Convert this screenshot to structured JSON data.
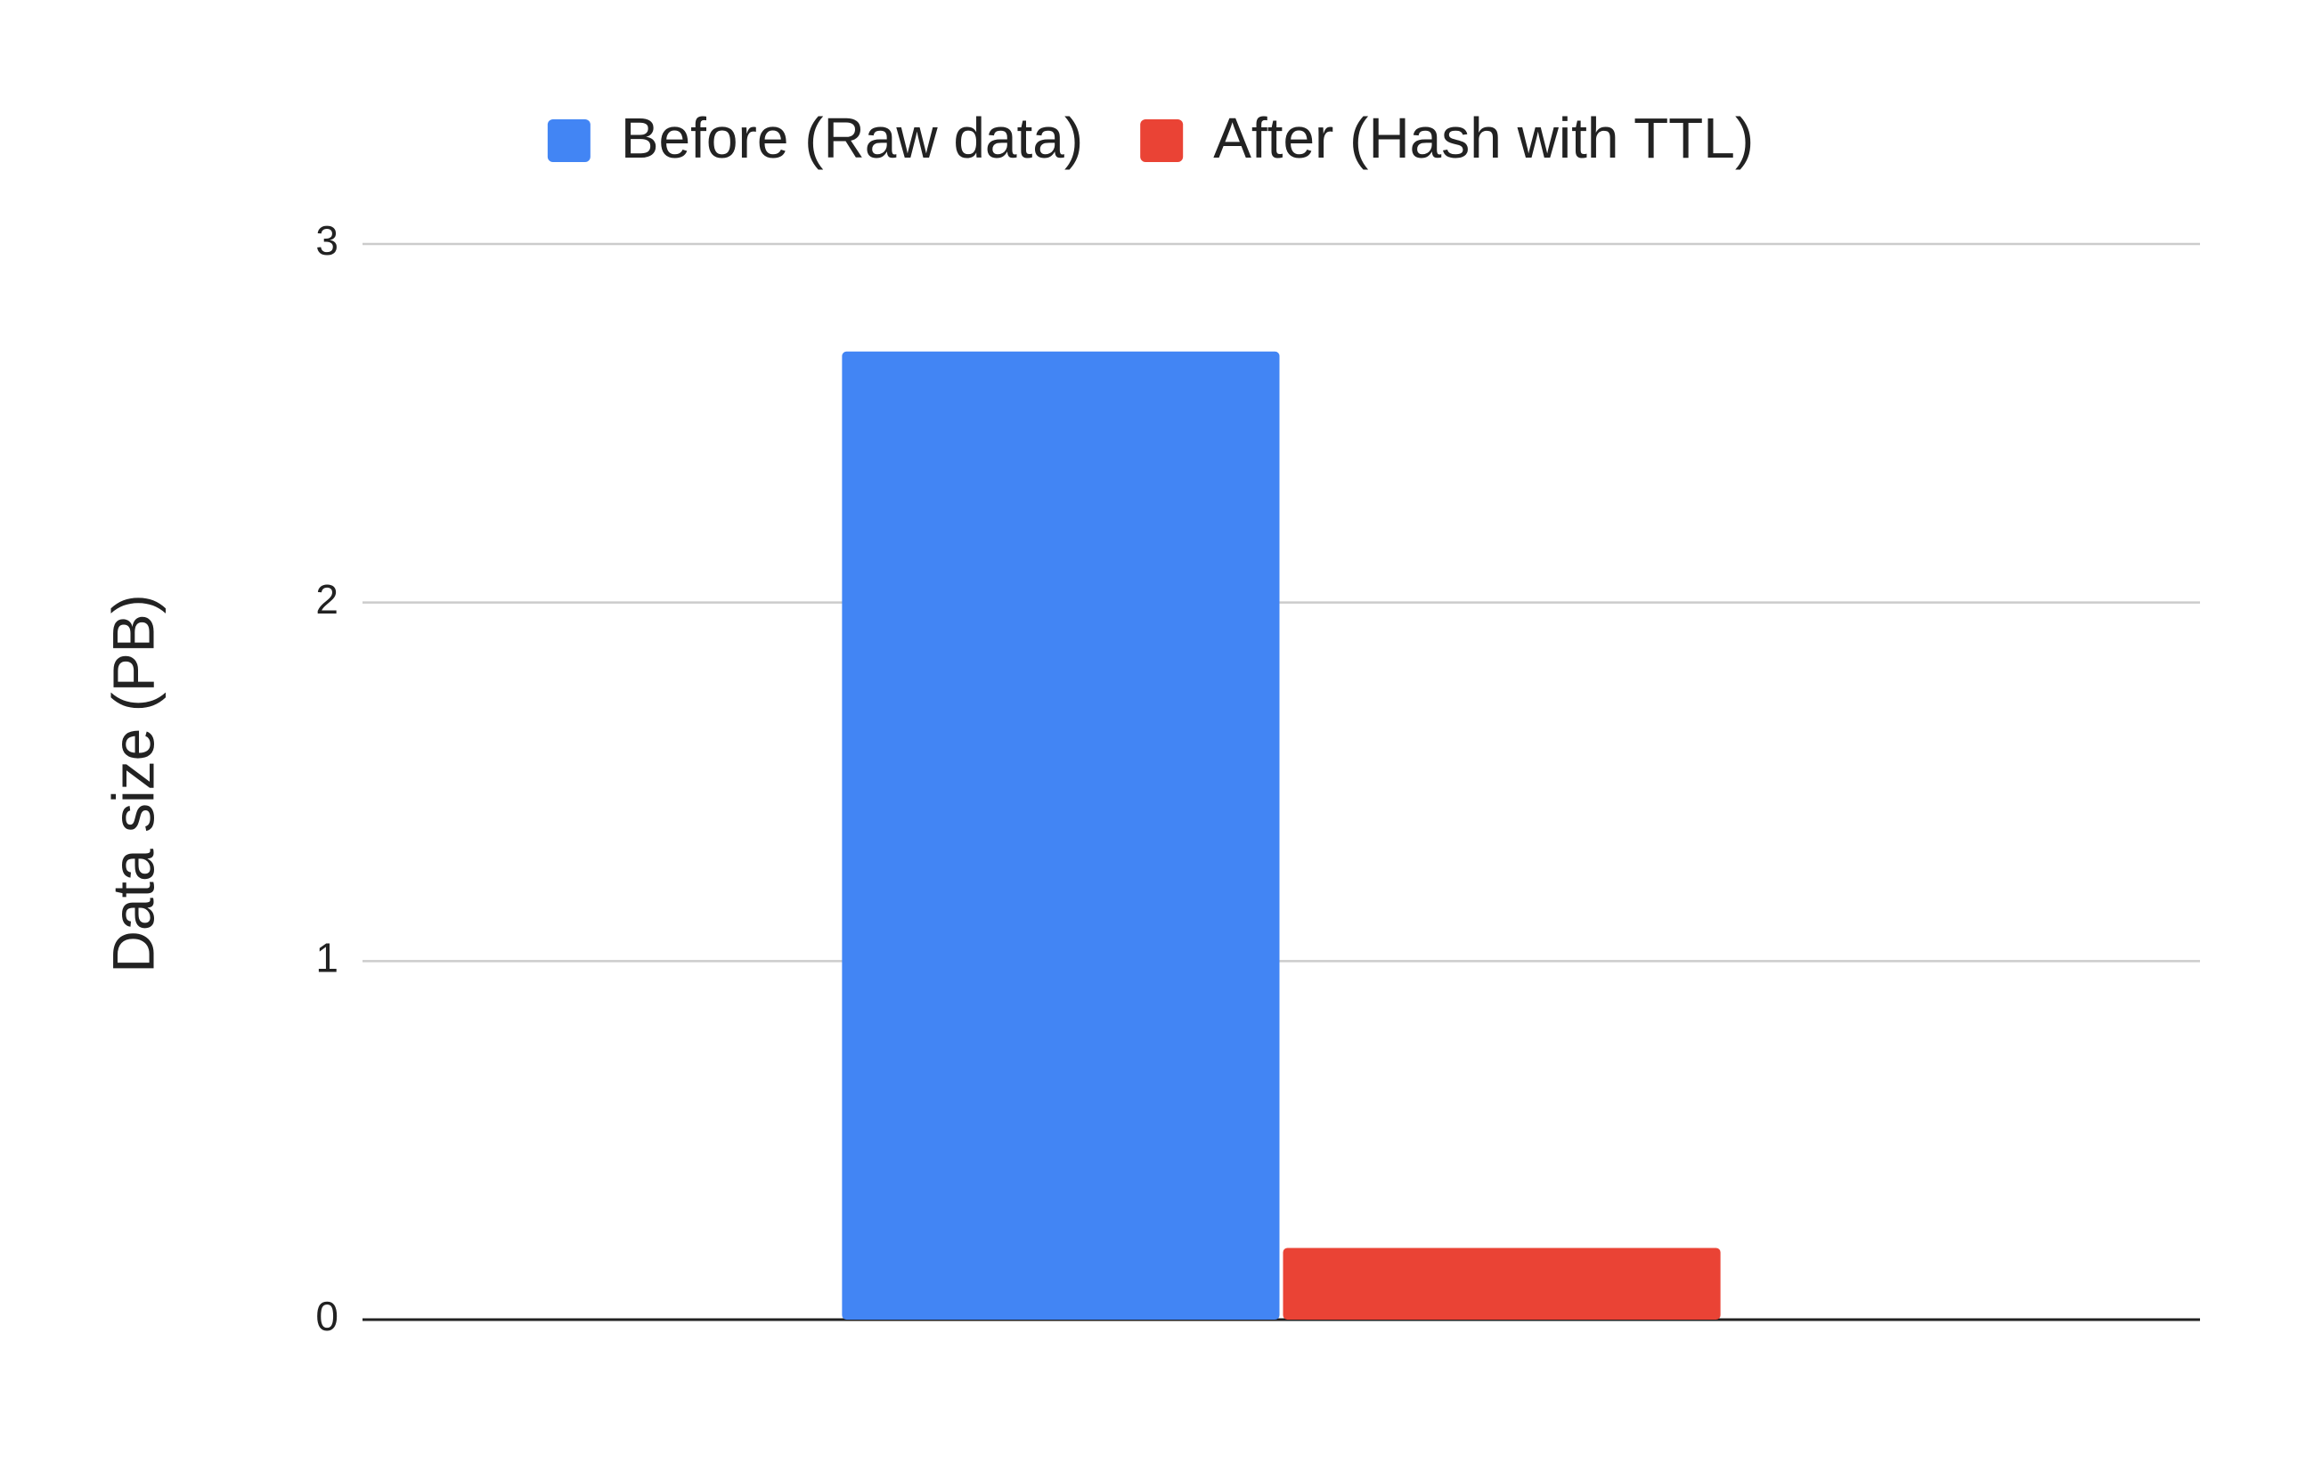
{
  "chart_data": {
    "type": "bar",
    "y_label": "Data size (PB)",
    "categories": [
      null
    ],
    "series": [
      {
        "name": "Before (Raw data)",
        "color": "#4285f4",
        "values": [
          2.7
        ]
      },
      {
        "name": "After (Hash with TTL)",
        "color": "#ea4335",
        "values": [
          0.2
        ]
      }
    ],
    "ylim": [
      0,
      3
    ],
    "yticks": [
      0,
      1,
      2,
      3
    ],
    "grid": true,
    "legend": "top"
  }
}
